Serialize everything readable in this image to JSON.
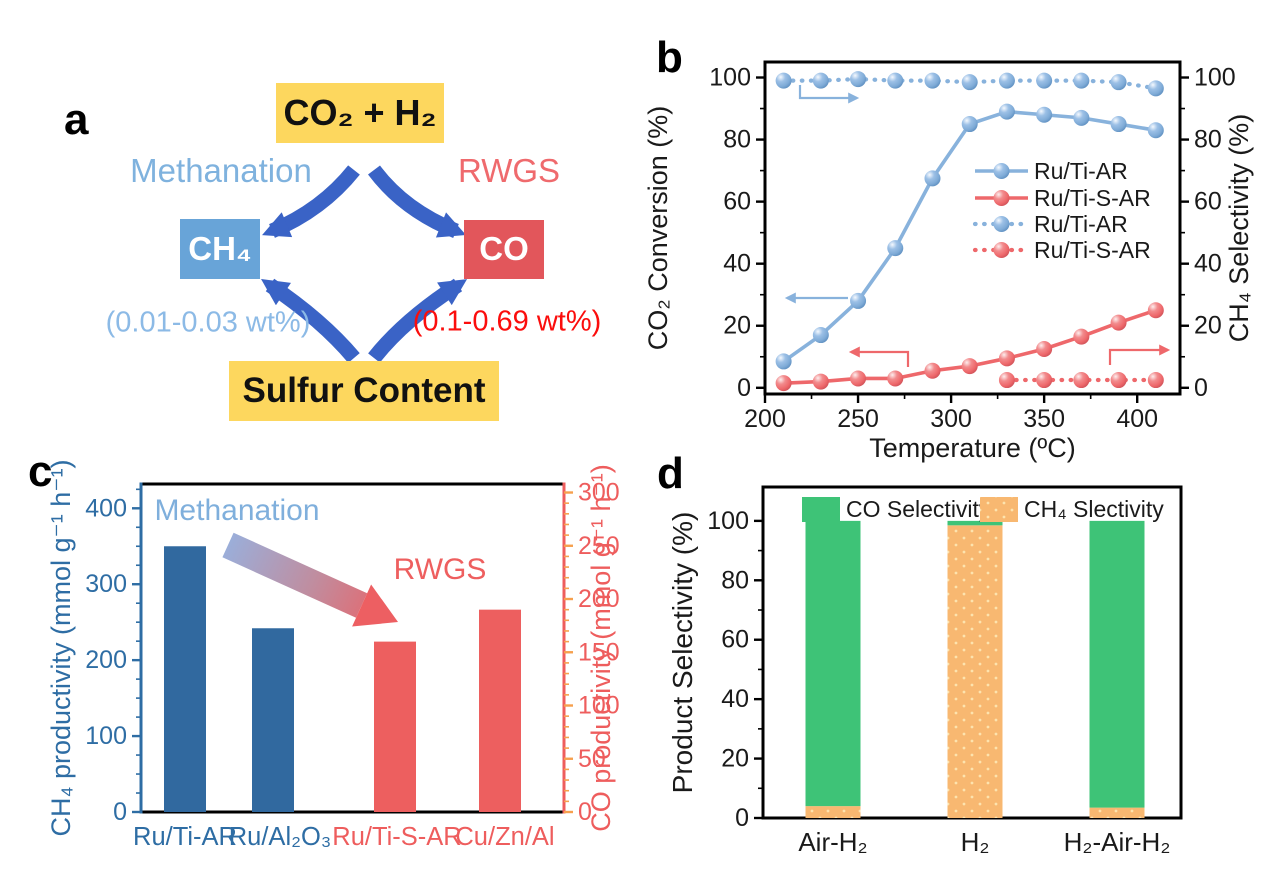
{
  "panels": {
    "a_label": "a",
    "b_label": "b",
    "c_label": "c",
    "d_label": "d"
  },
  "panel_a": {
    "reactants": "CO₂ + H₂",
    "methanation": "Methanation",
    "rwgs": "RWGS",
    "ch4": "CH₄",
    "co": "CO",
    "ch4_sulfur_range": "(0.01-0.03 wt%)",
    "co_sulfur_range": "(0.1-0.69 wt%)",
    "sulfur": "Sulfur Content",
    "colors": {
      "box_yellow": "#fdd75e",
      "ch4_box": "#68a4d8",
      "co_box": "#e2565b",
      "arrow_blue": "#3a63c6",
      "methanation_text": "#7fb2de",
      "rwgs_text": "#ef6a6d",
      "ch4_range_text": "#8cbae6",
      "co_range_text": "#fb0d0c",
      "box_text_dark": "#111111",
      "box_text_light": "#ffffff"
    }
  },
  "chart_data": [
    {
      "panel": "b",
      "type": "line",
      "title": "",
      "xlabel": "Temperature (ºC)",
      "ylabel_left": "CO₂ Conversion (%)",
      "ylabel_right": "CH₄ Selectivity (%)",
      "xlim": [
        200,
        423
      ],
      "xticks": [
        200,
        250,
        300,
        350,
        400
      ],
      "ylim": [
        -2,
        105
      ],
      "yticks": [
        0,
        20,
        40,
        60,
        80,
        100
      ],
      "x": [
        210,
        230,
        250,
        270,
        290,
        310,
        330,
        350,
        370,
        390,
        410
      ],
      "series": [
        {
          "name": "Ru/Ti-AR",
          "axis": "left",
          "style": "dotted",
          "color": "#88b2dc",
          "values": [
            99,
            99,
            99.5,
            99,
            99,
            98.5,
            99,
            99,
            99,
            98.5,
            96.5
          ],
          "note": "CH4 selectivity, right axis",
          "right_axis": true
        },
        {
          "name": "Ru/Ti-S-AR",
          "axis": "left",
          "style": "dotted",
          "color": "#ee686b",
          "x": [
            330,
            350,
            370,
            390,
            410
          ],
          "values": [
            2.5,
            2.5,
            2.5,
            2.5,
            2.5
          ],
          "note": "CH4 selectivity, right axis",
          "right_axis": true
        },
        {
          "name": "Ru/Ti-S-AR",
          "axis": "left",
          "style": "solid",
          "color": "#ee686b",
          "values": [
            1.5,
            2,
            3,
            3,
            5.5,
            7,
            9.5,
            12.5,
            16.5,
            21,
            25
          ],
          "note": "CO2 conversion, left axis",
          "right_axis": false
        },
        {
          "name": "Ru/Ti-AR",
          "axis": "left",
          "style": "solid",
          "color": "#88b2dc",
          "values": [
            8.5,
            17,
            28,
            45,
            67.5,
            85,
            89,
            88,
            87,
            85,
            83
          ],
          "note": "CO2 conversion, left axis",
          "right_axis": false
        }
      ],
      "legend": [
        {
          "label": "Ru/Ti-AR",
          "style": "solid",
          "color": "#88b2dc"
        },
        {
          "label": "Ru/Ti-S-AR",
          "style": "solid",
          "color": "#ee686b"
        },
        {
          "label": "Ru/Ti-AR",
          "style": "dotted",
          "color": "#88b2dc"
        },
        {
          "label": "Ru/Ti-S-AR",
          "style": "dotted",
          "color": "#ee686b"
        }
      ]
    },
    {
      "panel": "c",
      "type": "bar",
      "categories": [
        "Ru/Ti-AR",
        "Ru/Al₂O₃",
        "Ru/Ti-S-AR",
        "Cu/Zn/Al"
      ],
      "values": [
        350,
        242,
        160,
        190
      ],
      "bar_axis": [
        "left",
        "left",
        "right",
        "right"
      ],
      "bar_colors": [
        "#31699f",
        "#31699f",
        "#ed5f5f",
        "#ed5f5f"
      ],
      "category_colors": [
        "#2e6da4",
        "#2e6da4",
        "#ee5d5d",
        "#ee5d5d"
      ],
      "ylabel_left": "CH₄ productivity (mmol g⁻¹ h⁻¹)",
      "ylabel_right": "CO productivity (mmol g⁻¹ h⁻¹)",
      "ylim_left": [
        0,
        432
      ],
      "yticks_left": [
        0,
        100,
        200,
        300,
        400
      ],
      "ylim_right": [
        0,
        308
      ],
      "yticks_right": [
        0,
        50,
        100,
        150,
        200,
        250,
        300
      ],
      "axis_colors": {
        "left": "#2e6da4",
        "right_label": "#ee5d5d",
        "right_tick": "#f6a04e"
      },
      "annotations": {
        "methanation": {
          "text": "Methanation",
          "color": "#7fafdc"
        },
        "rwgs": {
          "text": "RWGS",
          "color": "#ee5f5f"
        },
        "arrow_gradient": [
          "#9baed9",
          "#c08d9f",
          "#ed5f62"
        ]
      }
    },
    {
      "panel": "d",
      "type": "stacked-bar",
      "categories": [
        "Air-H₂",
        "H₂",
        "H₂-Air-H₂"
      ],
      "series": [
        {
          "name": "CH₄ Slectivity",
          "color": "#f8b871",
          "values": [
            4,
            98.5,
            3.5
          ]
        },
        {
          "name": "CO Selectivity",
          "color": "#3ec377",
          "values": [
            96,
            1.5,
            96.5
          ]
        }
      ],
      "legend_order": [
        "CO Selectivity",
        "CH₄ Slectivity"
      ],
      "ylabel": "Product Selectivity (%)",
      "ylim": [
        0,
        111.4
      ],
      "yticks": [
        0,
        20,
        40,
        60,
        80,
        100
      ]
    }
  ]
}
